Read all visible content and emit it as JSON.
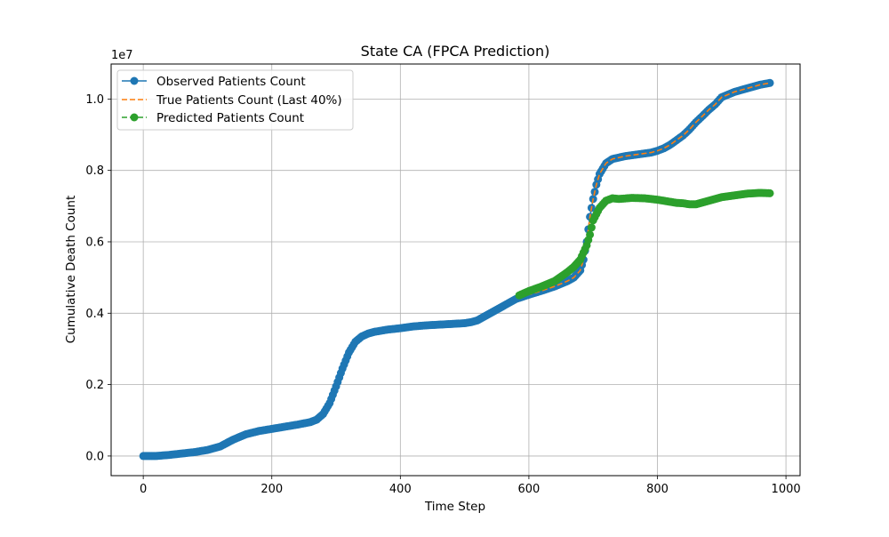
{
  "chart_data": {
    "type": "line",
    "title": "State CA (FPCA Prediction)",
    "xlabel": "Time Step",
    "ylabel": "Cumulative Death Count",
    "y_scale_label": "1e7",
    "xlim": [
      -50,
      1022
    ],
    "ylim": [
      -550000,
      10980000
    ],
    "x_ticks": [
      0,
      200,
      400,
      600,
      800,
      1000
    ],
    "x_tick_labels": [
      "0",
      "200",
      "400",
      "600",
      "800",
      "1000"
    ],
    "y_ticks": [
      0,
      2000000,
      4000000,
      6000000,
      8000000,
      10000000
    ],
    "y_tick_labels": [
      "0.0",
      "0.2",
      "0.4",
      "0.6",
      "0.8",
      "1.0"
    ],
    "grid": true,
    "legend_position": "top-left",
    "series": [
      {
        "name": "Observed Patients Count",
        "color": "#1f77b4",
        "style": "solid-markers",
        "x": [
          0,
          20,
          40,
          60,
          80,
          100,
          120,
          140,
          160,
          180,
          200,
          220,
          240,
          260,
          270,
          280,
          290,
          300,
          310,
          320,
          330,
          340,
          350,
          360,
          380,
          400,
          420,
          440,
          460,
          480,
          500,
          510,
          520,
          530,
          540,
          550,
          560,
          570,
          580,
          590,
          600,
          620,
          640,
          660,
          670,
          680,
          685,
          690,
          695,
          700,
          705,
          710,
          720,
          730,
          750,
          770,
          790,
          800,
          810,
          820,
          830,
          840,
          850,
          860,
          870,
          880,
          890,
          900,
          920,
          940,
          960,
          975
        ],
        "y": [
          0,
          0,
          30000,
          70000,
          110000,
          170000,
          270000,
          460000,
          610000,
          700000,
          760000,
          820000,
          880000,
          950000,
          1020000,
          1180000,
          1480000,
          1950000,
          2450000,
          2900000,
          3200000,
          3350000,
          3430000,
          3480000,
          3540000,
          3580000,
          3630000,
          3660000,
          3680000,
          3700000,
          3720000,
          3750000,
          3800000,
          3900000,
          4000000,
          4100000,
          4200000,
          4300000,
          4400000,
          4460000,
          4520000,
          4630000,
          4750000,
          4900000,
          5000000,
          5200000,
          5500000,
          6000000,
          6700000,
          7200000,
          7600000,
          7900000,
          8200000,
          8320000,
          8400000,
          8450000,
          8500000,
          8550000,
          8620000,
          8720000,
          8850000,
          8980000,
          9150000,
          9350000,
          9520000,
          9700000,
          9850000,
          10050000,
          10200000,
          10300000,
          10400000,
          10450000
        ]
      },
      {
        "name": "True Patients Count (Last 40%)",
        "color": "#ff7f0e",
        "style": "dashed",
        "x": [
          585,
          600,
          620,
          640,
          660,
          670,
          680,
          685,
          690,
          695,
          700,
          705,
          710,
          720,
          730,
          750,
          770,
          790,
          800,
          810,
          820,
          830,
          840,
          850,
          860,
          870,
          880,
          890,
          900,
          920,
          940,
          960,
          975
        ],
        "y": [
          4440000,
          4520000,
          4630000,
          4750000,
          4900000,
          5000000,
          5200000,
          5500000,
          6000000,
          6700000,
          7200000,
          7600000,
          7900000,
          8200000,
          8320000,
          8400000,
          8450000,
          8500000,
          8550000,
          8620000,
          8720000,
          8850000,
          8980000,
          9150000,
          9350000,
          9520000,
          9700000,
          9850000,
          10050000,
          10200000,
          10300000,
          10400000,
          10450000
        ]
      },
      {
        "name": "Predicted Patients Count",
        "color": "#2ca02c",
        "style": "dashed-markers",
        "x": [
          585,
          600,
          620,
          640,
          660,
          670,
          680,
          685,
          690,
          695,
          700,
          710,
          720,
          730,
          740,
          760,
          780,
          800,
          820,
          830,
          840,
          850,
          860,
          870,
          880,
          900,
          920,
          940,
          960,
          975
        ],
        "y": [
          4500000,
          4620000,
          4750000,
          4900000,
          5150000,
          5300000,
          5500000,
          5700000,
          5900000,
          6200000,
          6600000,
          6950000,
          7150000,
          7220000,
          7200000,
          7230000,
          7220000,
          7180000,
          7120000,
          7090000,
          7080000,
          7050000,
          7050000,
          7100000,
          7150000,
          7250000,
          7300000,
          7350000,
          7370000,
          7360000
        ]
      }
    ]
  }
}
